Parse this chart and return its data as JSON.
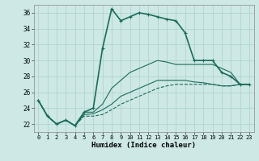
{
  "xlabel": "Humidex (Indice chaleur)",
  "background_color": "#cde8e5",
  "grid_color": "#b0d4d0",
  "line_color": "#1a6b5a",
  "xlim": [
    -0.5,
    23.5
  ],
  "ylim": [
    21.0,
    37.0
  ],
  "yticks": [
    22,
    24,
    26,
    28,
    30,
    32,
    34,
    36
  ],
  "xticks": [
    0,
    1,
    2,
    3,
    4,
    5,
    6,
    7,
    8,
    9,
    10,
    11,
    12,
    13,
    14,
    15,
    16,
    17,
    18,
    19,
    20,
    21,
    22,
    23
  ],
  "series": [
    {
      "y": [
        25.0,
        23.0,
        22.0,
        22.5,
        21.8,
        23.5,
        24.0,
        31.5,
        36.5,
        35.0,
        35.5,
        36.0,
        35.8,
        35.5,
        35.2,
        35.0,
        33.5,
        30.0,
        30.0,
        30.0,
        28.5,
        28.0,
        27.0,
        27.0
      ],
      "lw": 1.2,
      "marker": true,
      "ls": "-"
    },
    {
      "y": [
        25.0,
        23.0,
        22.0,
        22.5,
        21.8,
        23.5,
        23.5,
        24.5,
        26.5,
        27.5,
        28.5,
        29.0,
        29.5,
        30.0,
        29.8,
        29.5,
        29.5,
        29.5,
        29.5,
        29.5,
        29.0,
        28.5,
        27.0,
        27.0
      ],
      "lw": 0.8,
      "marker": false,
      "ls": "-"
    },
    {
      "y": [
        25.0,
        23.0,
        22.0,
        22.5,
        21.8,
        23.2,
        23.3,
        23.8,
        24.5,
        25.5,
        26.0,
        26.5,
        27.0,
        27.5,
        27.5,
        27.5,
        27.5,
        27.3,
        27.2,
        27.0,
        26.8,
        26.8,
        27.0,
        27.0
      ],
      "lw": 0.8,
      "marker": false,
      "ls": "-"
    },
    {
      "y": [
        25.0,
        23.0,
        22.0,
        22.5,
        21.8,
        23.0,
        23.0,
        23.2,
        23.8,
        24.5,
        25.0,
        25.5,
        26.0,
        26.5,
        26.8,
        27.0,
        27.0,
        27.0,
        27.0,
        27.0,
        26.8,
        26.8,
        27.0,
        27.0
      ],
      "lw": 0.8,
      "marker": false,
      "ls": "--"
    }
  ]
}
